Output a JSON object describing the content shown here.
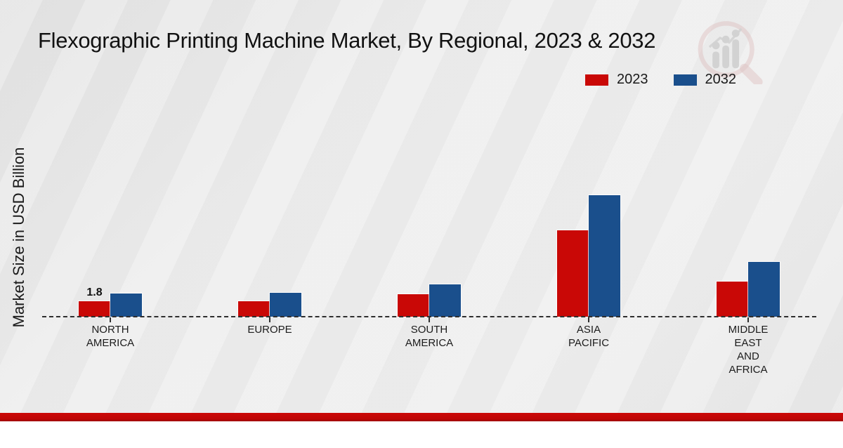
{
  "title": "Flexographic Printing Machine Market, By Regional, 2023 & 2032",
  "y_axis": {
    "label": "Market Size in USD Billion"
  },
  "legend": {
    "items": [
      {
        "label": "2023",
        "color": "#c90806"
      },
      {
        "label": "2032",
        "color": "#1a4f8c"
      }
    ]
  },
  "watermark": {
    "icon": "chart-magnifier-logo"
  },
  "footer": {
    "band_color": "#c00606"
  },
  "chart_data": {
    "type": "bar",
    "title": "Flexographic Printing Machine Market, By Regional, 2023 & 2032",
    "xlabel": "",
    "ylabel": "Market Size in USD Billion",
    "categories": [
      "NORTH AMERICA",
      "EUROPE",
      "SOUTH AMERICA",
      "ASIA PACIFIC",
      "MIDDLE EAST AND AFRICA"
    ],
    "category_label_lines": [
      [
        "NORTH",
        "AMERICA"
      ],
      [
        "EUROPE"
      ],
      [
        "SOUTH",
        "AMERICA"
      ],
      [
        "ASIA",
        "PACIFIC"
      ],
      [
        "MIDDLE",
        "EAST",
        "AND",
        "AFRICA"
      ]
    ],
    "series": [
      {
        "name": "2023",
        "color": "#c90806",
        "values": [
          1.8,
          1.8,
          2.6,
          10.1,
          4.1
        ]
      },
      {
        "name": "2032",
        "color": "#1a4f8c",
        "values": [
          2.7,
          2.8,
          3.8,
          14.2,
          6.4
        ]
      }
    ],
    "data_labels": [
      {
        "series_index": 0,
        "category_index": 0,
        "text": "1.8"
      }
    ],
    "ylim": [
      0,
      16
    ],
    "y_ticks_visible": false,
    "grid": false,
    "zero_line_style": "dashed",
    "legend_position": "top-right"
  }
}
